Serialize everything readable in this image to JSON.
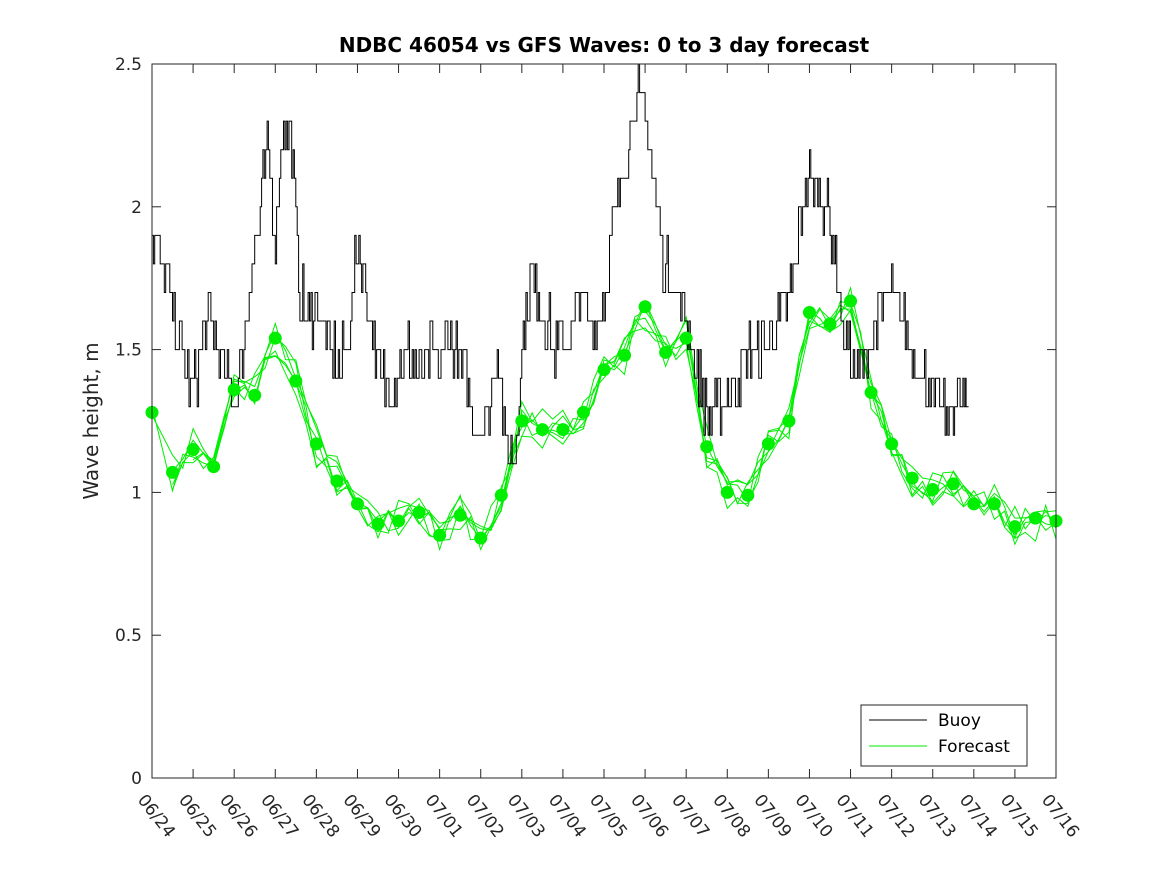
{
  "chart_data": {
    "type": "line",
    "title": "NDBC 46054 vs GFS Waves: 0 to 3 day forecast",
    "ylabel": "Wave height, m",
    "xlabel": "",
    "x_tick_labels": [
      "06/24",
      "06/25",
      "06/26",
      "06/27",
      "06/28",
      "06/29",
      "06/30",
      "07/01",
      "07/02",
      "07/03",
      "07/04",
      "07/05",
      "07/06",
      "07/07",
      "07/08",
      "07/09",
      "07/10",
      "07/11",
      "07/12",
      "07/13",
      "07/14",
      "07/15",
      "07/16"
    ],
    "y_ticks": [
      "0",
      "0.5",
      "1",
      "1.5",
      "2",
      "2.5"
    ],
    "xlim": [
      "06/24",
      "07/16"
    ],
    "ylim": [
      0,
      2.5
    ],
    "grid": false,
    "legend_placement": "bottom-right",
    "colors": {
      "buoy": "#000000",
      "forecast": "#00ee00"
    },
    "series": [
      {
        "name": "Buoy",
        "style": "line",
        "points": [
          [
            0.0,
            1.9
          ],
          [
            0.2,
            1.8
          ],
          [
            0.4,
            1.7
          ],
          [
            0.6,
            1.55
          ],
          [
            0.8,
            1.45
          ],
          [
            1.0,
            1.35
          ],
          [
            1.2,
            1.5
          ],
          [
            1.4,
            1.6
          ],
          [
            1.6,
            1.5
          ],
          [
            1.8,
            1.4
          ],
          [
            2.0,
            1.3
          ],
          [
            2.2,
            1.5
          ],
          [
            2.4,
            1.75
          ],
          [
            2.6,
            1.95
          ],
          [
            2.8,
            2.2
          ],
          [
            3.0,
            1.9
          ],
          [
            3.2,
            2.3
          ],
          [
            3.4,
            2.2
          ],
          [
            3.6,
            1.7
          ],
          [
            3.8,
            1.6
          ],
          [
            4.0,
            1.65
          ],
          [
            4.2,
            1.55
          ],
          [
            4.4,
            1.5
          ],
          [
            4.6,
            1.45
          ],
          [
            4.8,
            1.55
          ],
          [
            5.0,
            1.9
          ],
          [
            5.2,
            1.7
          ],
          [
            5.4,
            1.5
          ],
          [
            5.6,
            1.4
          ],
          [
            5.8,
            1.35
          ],
          [
            6.0,
            1.45
          ],
          [
            6.2,
            1.5
          ],
          [
            6.4,
            1.45
          ],
          [
            6.6,
            1.4
          ],
          [
            6.8,
            1.5
          ],
          [
            7.0,
            1.45
          ],
          [
            7.2,
            1.55
          ],
          [
            7.4,
            1.5
          ],
          [
            7.6,
            1.4
          ],
          [
            7.8,
            1.25
          ],
          [
            8.0,
            1.25
          ],
          [
            8.2,
            1.3
          ],
          [
            8.4,
            1.55
          ],
          [
            8.6,
            1.15
          ],
          [
            8.8,
            1.1
          ],
          [
            9.0,
            1.5
          ],
          [
            9.2,
            1.75
          ],
          [
            9.4,
            1.7
          ],
          [
            9.6,
            1.6
          ],
          [
            9.8,
            1.5
          ],
          [
            10.0,
            1.55
          ],
          [
            10.2,
            1.5
          ],
          [
            10.4,
            1.7
          ],
          [
            10.6,
            1.6
          ],
          [
            10.8,
            1.55
          ],
          [
            11.0,
            1.7
          ],
          [
            11.2,
            1.9
          ],
          [
            11.4,
            2.05
          ],
          [
            11.6,
            2.25
          ],
          [
            11.8,
            2.4
          ],
          [
            12.0,
            2.3
          ],
          [
            12.2,
            2.1
          ],
          [
            12.4,
            1.85
          ],
          [
            12.6,
            1.75
          ],
          [
            12.8,
            1.7
          ],
          [
            13.0,
            1.6
          ],
          [
            13.2,
            1.45
          ],
          [
            13.4,
            1.35
          ],
          [
            13.6,
            1.25
          ],
          [
            13.8,
            1.3
          ],
          [
            14.0,
            1.35
          ],
          [
            14.2,
            1.4
          ],
          [
            14.4,
            1.45
          ],
          [
            14.6,
            1.5
          ],
          [
            14.8,
            1.5
          ],
          [
            15.0,
            1.55
          ],
          [
            15.2,
            1.6
          ],
          [
            15.4,
            1.65
          ],
          [
            15.6,
            1.75
          ],
          [
            15.8,
            2.0
          ],
          [
            16.0,
            2.1
          ],
          [
            16.2,
            2.05
          ],
          [
            16.4,
            2.0
          ],
          [
            16.6,
            1.85
          ],
          [
            16.8,
            1.55
          ],
          [
            17.0,
            1.45
          ],
          [
            17.2,
            1.4
          ],
          [
            17.4,
            1.5
          ],
          [
            17.6,
            1.6
          ],
          [
            17.8,
            1.65
          ],
          [
            18.0,
            1.7
          ],
          [
            18.2,
            1.65
          ],
          [
            18.4,
            1.55
          ],
          [
            18.6,
            1.45
          ],
          [
            18.8,
            1.4
          ],
          [
            19.0,
            1.35
          ],
          [
            19.2,
            1.3
          ],
          [
            19.4,
            1.25
          ],
          [
            19.6,
            1.35
          ],
          [
            19.8,
            1.3
          ]
        ]
      },
      {
        "name": "Forecast",
        "style": "lines+markers",
        "points": [
          [
            0.0,
            1.28
          ],
          [
            0.5,
            1.07
          ],
          [
            1.0,
            1.15
          ],
          [
            1.5,
            1.09
          ],
          [
            2.0,
            1.36
          ],
          [
            2.5,
            1.34
          ],
          [
            3.0,
            1.54
          ],
          [
            3.5,
            1.39
          ],
          [
            4.0,
            1.17
          ],
          [
            4.5,
            1.04
          ],
          [
            5.0,
            0.96
          ],
          [
            5.5,
            0.89
          ],
          [
            6.0,
            0.9
          ],
          [
            6.5,
            0.93
          ],
          [
            7.0,
            0.85
          ],
          [
            7.5,
            0.92
          ],
          [
            8.0,
            0.84
          ],
          [
            8.5,
            0.99
          ],
          [
            9.0,
            1.25
          ],
          [
            9.5,
            1.22
          ],
          [
            10.0,
            1.22
          ],
          [
            10.5,
            1.28
          ],
          [
            11.0,
            1.43
          ],
          [
            11.5,
            1.48
          ],
          [
            12.0,
            1.65
          ],
          [
            12.5,
            1.49
          ],
          [
            13.0,
            1.54
          ],
          [
            13.5,
            1.16
          ],
          [
            14.0,
            1.0
          ],
          [
            14.5,
            0.99
          ],
          [
            15.0,
            1.17
          ],
          [
            15.5,
            1.25
          ],
          [
            16.0,
            1.63
          ],
          [
            16.5,
            1.59
          ],
          [
            17.0,
            1.67
          ],
          [
            17.5,
            1.35
          ],
          [
            18.0,
            1.17
          ],
          [
            18.5,
            1.05
          ],
          [
            19.0,
            1.01
          ],
          [
            19.5,
            1.03
          ],
          [
            20.0,
            0.96
          ],
          [
            20.5,
            0.96
          ],
          [
            21.0,
            0.88
          ],
          [
            21.5,
            0.91
          ],
          [
            22.0,
            0.9
          ]
        ]
      }
    ]
  }
}
